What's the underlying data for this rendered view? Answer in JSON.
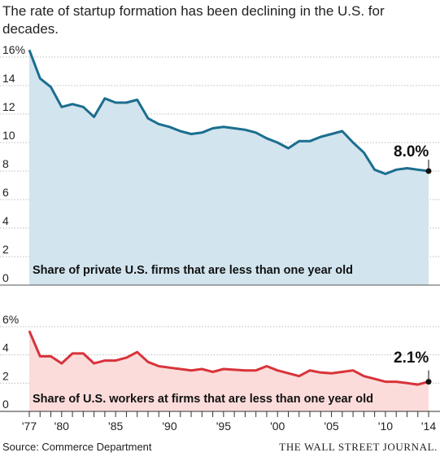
{
  "title": "The rate of startup formation has been declining in the U.S. for decades.",
  "source": "Source: Commerce Department",
  "publisher": "THE WALL STREET JOURNAL.",
  "chart_data": [
    {
      "type": "area",
      "label": "Share of private U.S. firms that are less than one year old",
      "unit": "%",
      "color": "#1b6e8f",
      "fill": "#d2e4ee",
      "ylim": [
        0,
        16
      ],
      "yticks": [
        "16%",
        "14",
        "12",
        "10",
        "8",
        "6",
        "4",
        "2",
        "0"
      ],
      "end_label": "8.0%",
      "x": [
        1977,
        1978,
        1979,
        1980,
        1981,
        1982,
        1983,
        1984,
        1985,
        1986,
        1987,
        1988,
        1989,
        1990,
        1991,
        1992,
        1993,
        1994,
        1995,
        1996,
        1997,
        1998,
        1999,
        2000,
        2001,
        2002,
        2003,
        2004,
        2005,
        2006,
        2007,
        2008,
        2009,
        2010,
        2011,
        2012,
        2013,
        2014
      ],
      "values": [
        16.5,
        14.5,
        13.9,
        12.5,
        12.7,
        12.5,
        11.8,
        13.1,
        12.8,
        12.8,
        13.0,
        11.7,
        11.3,
        11.1,
        10.8,
        10.6,
        10.7,
        11.0,
        11.1,
        11.0,
        10.9,
        10.7,
        10.3,
        10.0,
        9.6,
        10.1,
        10.1,
        10.4,
        10.6,
        10.8,
        10.0,
        9.3,
        8.1,
        7.8,
        8.1,
        8.2,
        8.1,
        8.0
      ]
    },
    {
      "type": "area",
      "label": "Share of U.S. workers at firms that are less than one year old",
      "unit": "%",
      "color": "#d8333a",
      "fill": "#fbdcdb",
      "ylim": [
        0,
        6
      ],
      "yticks": [
        "6%",
        "4",
        "2",
        "0"
      ],
      "end_label": "2.1%",
      "x": [
        1977,
        1978,
        1979,
        1980,
        1981,
        1982,
        1983,
        1984,
        1985,
        1986,
        1987,
        1988,
        1989,
        1990,
        1991,
        1992,
        1993,
        1994,
        1995,
        1996,
        1997,
        1998,
        1999,
        2000,
        2001,
        2002,
        2003,
        2004,
        2005,
        2006,
        2007,
        2008,
        2009,
        2010,
        2011,
        2012,
        2013,
        2014
      ],
      "values": [
        5.7,
        3.9,
        3.9,
        3.4,
        4.1,
        4.1,
        3.4,
        3.6,
        3.6,
        3.8,
        4.2,
        3.5,
        3.2,
        3.1,
        3.0,
        2.9,
        3.0,
        2.8,
        3.0,
        2.95,
        2.9,
        2.9,
        3.2,
        2.9,
        2.7,
        2.5,
        2.9,
        2.75,
        2.7,
        2.8,
        2.9,
        2.5,
        2.3,
        2.1,
        2.1,
        2.0,
        1.9,
        2.1
      ]
    }
  ],
  "xticks": [
    "'77",
    "'80",
    "'85",
    "'90",
    "'95",
    "'00",
    "'05",
    "'10",
    "'14"
  ]
}
